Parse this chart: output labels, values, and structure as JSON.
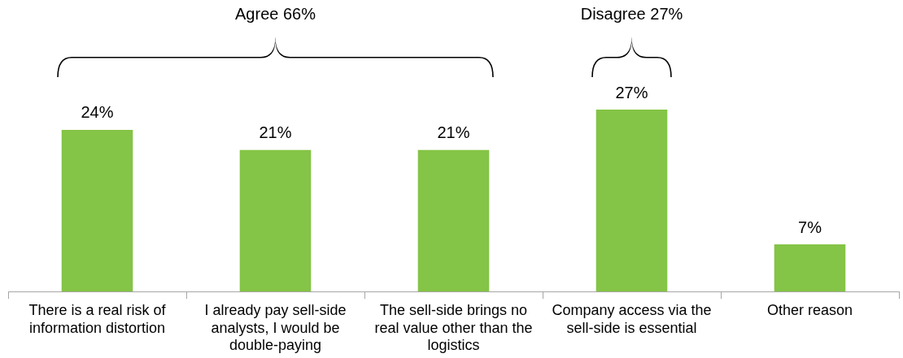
{
  "chart_data": {
    "type": "bar",
    "categories": [
      "There is a real risk of information distortion",
      "I already pay sell-side analysts, I would be double-paying",
      "The sell-side brings no real value other than the logistics",
      "Company access via the sell-side is essential",
      "Other reason"
    ],
    "values": [
      24,
      21,
      21,
      27,
      7
    ],
    "color": "#84c446",
    "tick_labels": "x",
    "value_labels": [
      "24%",
      "21%",
      "21%",
      "27%",
      "7%"
    ],
    "annotations": [
      "Agree 66%",
      "Disagree 27%"
    ],
    "grid": false,
    "legend": false
  }
}
